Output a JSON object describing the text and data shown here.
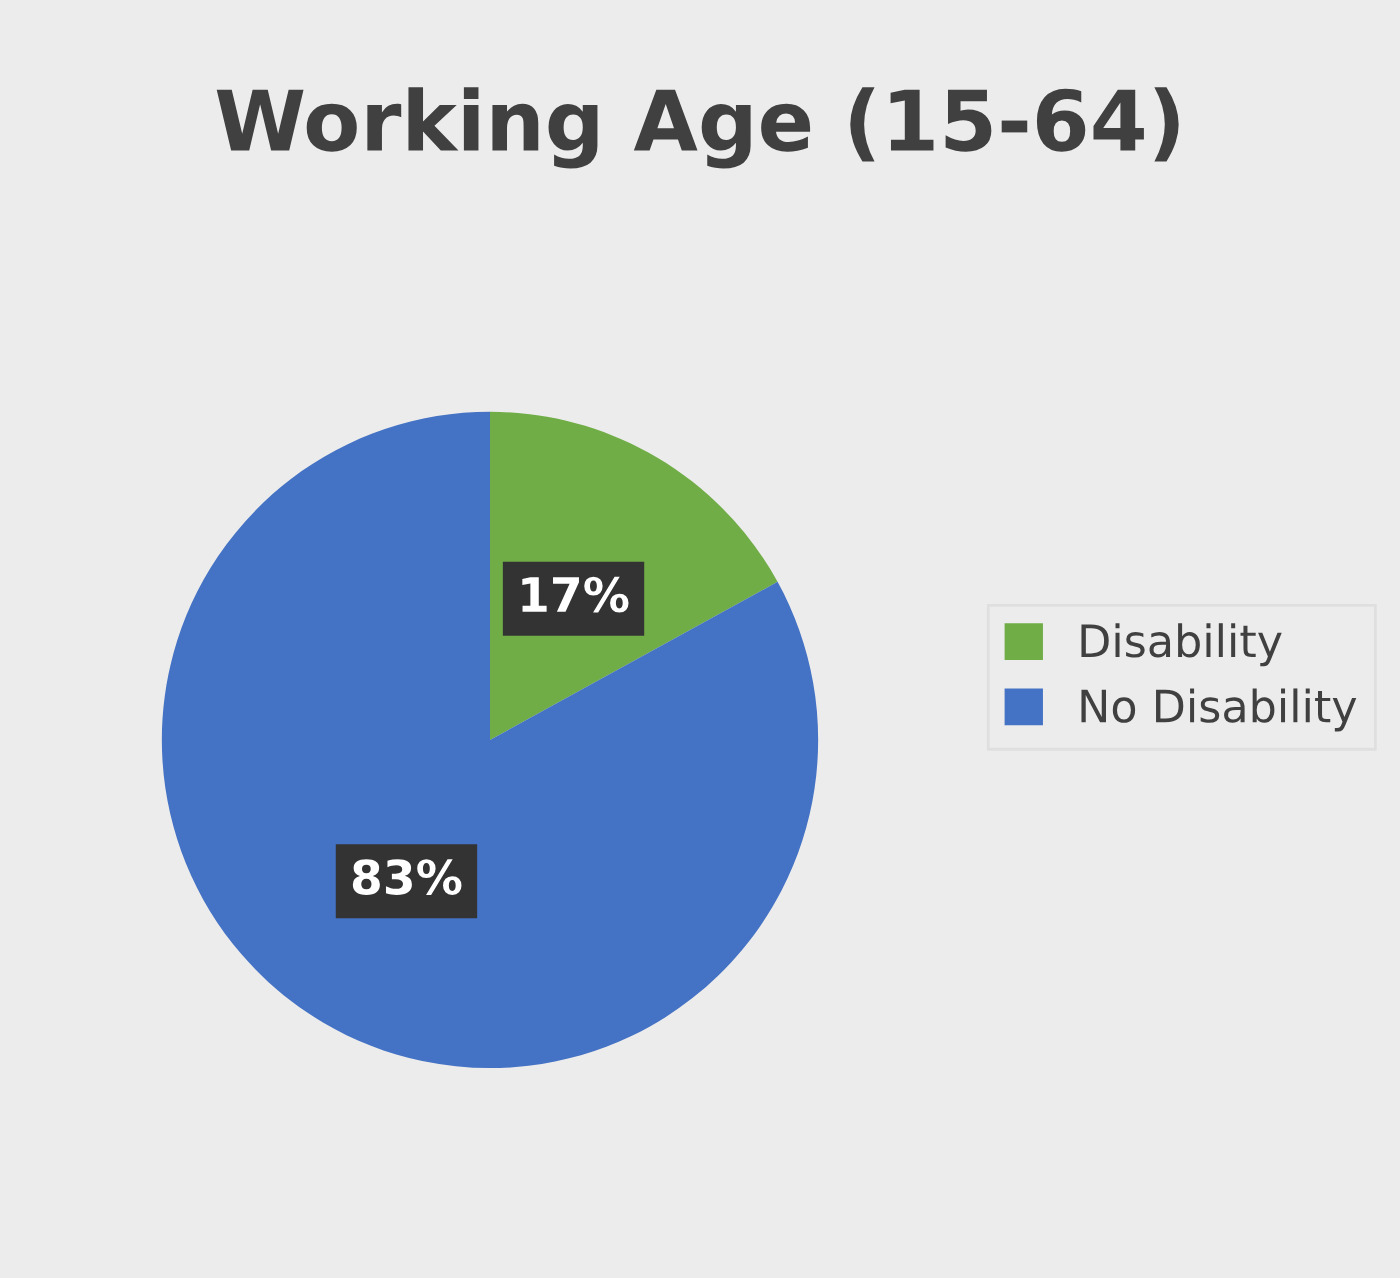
{
  "chart_data": {
    "type": "pie",
    "title": "Working Age (15-64)",
    "categories": [
      "Disability",
      "No Disability"
    ],
    "values": [
      17,
      83
    ],
    "colors": [
      "#70ad47",
      "#4472c4"
    ],
    "value_labels": [
      "17%",
      "83%"
    ],
    "legend": "right"
  }
}
